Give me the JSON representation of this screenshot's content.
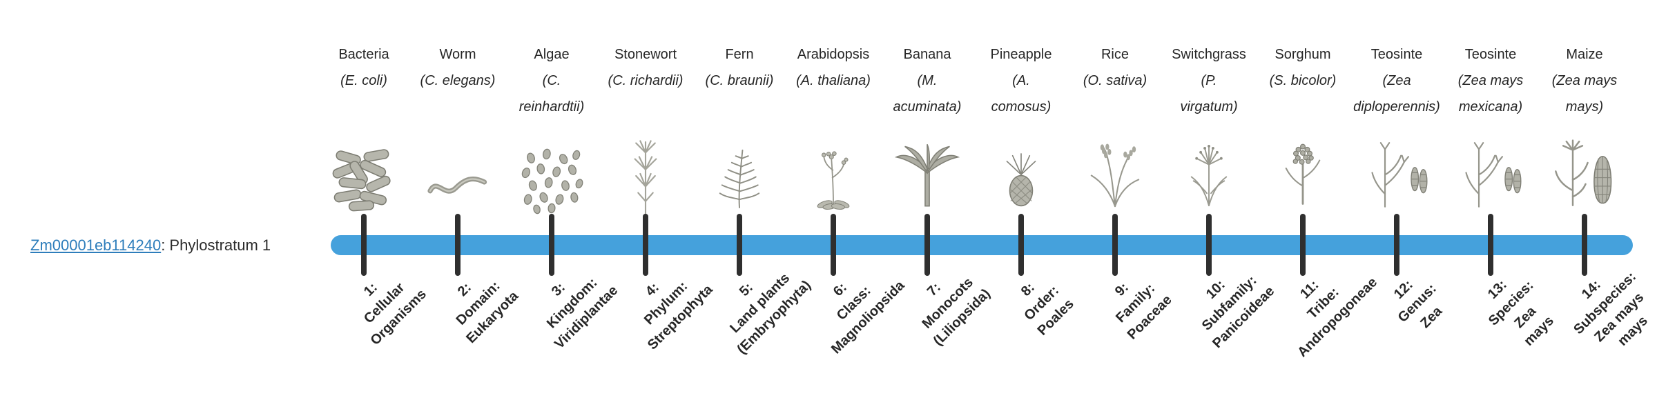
{
  "gene_label": {
    "link_text": "Zm00001eb114240",
    "rest_text": ": Phylostratum 1",
    "link_color": "#2d7dbb"
  },
  "timeline": {
    "bar_color": "#45a1dc",
    "tick_color": "#2f2f2f"
  },
  "organisms": [
    {
      "name": "Bacteria",
      "sci": "(E. coli)",
      "icon": "bacteria-icon",
      "stratum": "1:\nCellular\nOrganisms"
    },
    {
      "name": "Worm",
      "sci": "(C. elegans)",
      "icon": "worm-icon",
      "stratum": "2:\nDomain:\nEukaryota"
    },
    {
      "name": "Algae",
      "sci": "(C.\nreinhardtii)",
      "icon": "algae-icon",
      "stratum": "3:\nKingdom:\nViridiplantae"
    },
    {
      "name": "Stonewort",
      "sci": "(C. richardii)",
      "icon": "stonewort-icon",
      "stratum": "4:\nPhylum:\nStreptophyta"
    },
    {
      "name": "Fern",
      "sci": "(C. braunii)",
      "icon": "fern-icon",
      "stratum": "5:\nLand plants\n(Embryophyta)"
    },
    {
      "name": "Arabidopsis",
      "sci": "(A. thaliana)",
      "icon": "arabidopsis-icon",
      "stratum": "6:\nClass:\nMagnoliopsida"
    },
    {
      "name": "Banana",
      "sci": "(M.\nacuminata)",
      "icon": "banana-icon",
      "stratum": "7:\nMonocots\n(Liliopsida)"
    },
    {
      "name": "Pineapple",
      "sci": "(A.\ncomosus)",
      "icon": "pineapple-icon",
      "stratum": "8:\nOrder:\nPoales"
    },
    {
      "name": "Rice",
      "sci": "(O. sativa)",
      "icon": "rice-icon",
      "stratum": "9:\nFamily:\nPoaceae"
    },
    {
      "name": "Switchgrass",
      "sci": "(P.\nvirgatum)",
      "icon": "switchgrass-icon",
      "stratum": "10:\nSubfamily:\nPanicoideae"
    },
    {
      "name": "Sorghum",
      "sci": "(S. bicolor)",
      "icon": "sorghum-icon",
      "stratum": "11:\nTribe:\nAndropogoneae"
    },
    {
      "name": "Teosinte",
      "sci": "(Zea\ndiploperennis)",
      "icon": "teosinte-icon",
      "stratum": "12:\nGenus:\nZea"
    },
    {
      "name": "Teosinte",
      "sci": "(Zea mays\nmexicana)",
      "icon": "teosinte-icon",
      "stratum": "13:\nSpecies:\nZea\nmays"
    },
    {
      "name": "Maize",
      "sci": "(Zea mays\nmays)",
      "icon": "maize-icon",
      "stratum": "14:\nSubspecies:\nZea mays\nmays"
    }
  ]
}
